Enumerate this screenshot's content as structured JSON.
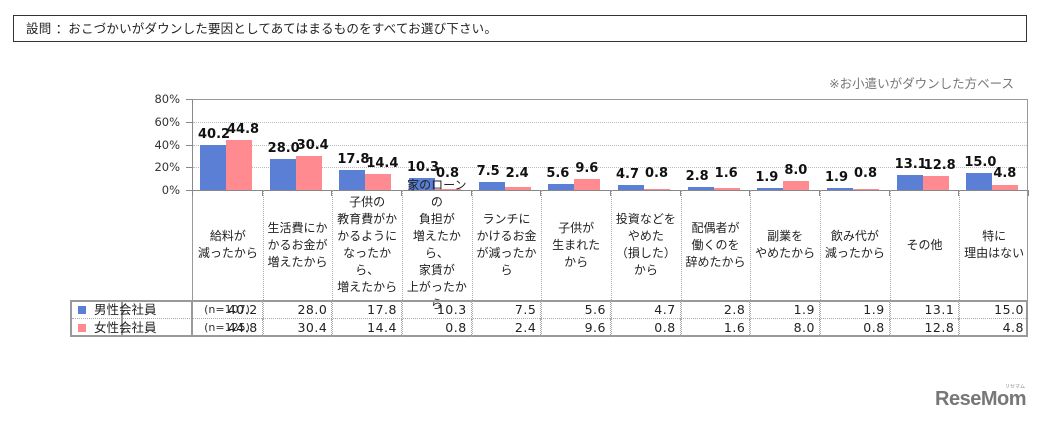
{
  "question": "設問 ：おこづかいがダウンした要因としてあてはまるものをすべてお選び下さい。",
  "note": "※お小遣いがダウンした方ベース",
  "colors": {
    "male": "#5b7fd4",
    "female": "#ff8a90"
  },
  "legend": [
    {
      "name": "男性会社員",
      "n": "(n=107)",
      "color": "#5b7fd4"
    },
    {
      "name": "女性会社員",
      "n": "(n=125)",
      "color": "#ff8a90"
    }
  ],
  "yaxis": {
    "ticks": [
      "80%",
      "60%",
      "40%",
      "20%",
      "0%"
    ]
  },
  "categories": [
    "給料が\n減ったから",
    "生活費にか\nかるお金が\n増えたから",
    "子供の\n教育費がか\nかるように\nなったから、\n増えたから",
    "家のローンの\n負担が\n増えたから、\n家賃が\n上がったから",
    "ランチに\nかけるお金\nが減ったから",
    "子供が\n生まれた\nから",
    "投資などを\nやめた\n（損した）\nから",
    "配偶者が\n働くのを\n辞めたから",
    "副業を\nやめたから",
    "飲み代が\n減ったから",
    "その他",
    "特に\n理由はない"
  ],
  "male_values": [
    "40.2",
    "28.0",
    "17.8",
    "10.3",
    "7.5",
    "5.6",
    "4.7",
    "2.8",
    "1.9",
    "1.9",
    "13.1",
    "15.0"
  ],
  "female_values": [
    "44.8",
    "30.4",
    "14.4",
    "0.8",
    "2.4",
    "9.6",
    "0.8",
    "1.6",
    "8.0",
    "0.8",
    "12.8",
    "4.8"
  ],
  "logo": {
    "text": "ReseMom",
    "sub": "リセマム"
  },
  "chart_data": {
    "type": "bar",
    "title": "設問 ：おこづかいがダウンした要因としてあてはまるものをすべてお選び下さい。",
    "subtitle": "※お小遣いがダウンした方ベース",
    "xlabel": "",
    "ylabel": "",
    "ylim": [
      0,
      80
    ],
    "yticks": [
      0,
      20,
      40,
      60,
      80
    ],
    "grid": true,
    "legend_position": "table-left",
    "categories": [
      "給料が減ったから",
      "生活費にかかるお金が増えたから",
      "子供の教育費がかかるようになったから、増えたから",
      "家のローンの負担が増えたから、家賃が上がったから",
      "ランチにかけるお金が減ったから",
      "子供が生まれたから",
      "投資などをやめた（損した）から",
      "配偶者が働くのを辞めたから",
      "副業をやめたから",
      "飲み代が減ったから",
      "その他",
      "特に理由はない"
    ],
    "series": [
      {
        "name": "男性会社員 (n=107)",
        "color": "#5b7fd4",
        "values": [
          40.2,
          28.0,
          17.8,
          10.3,
          7.5,
          5.6,
          4.7,
          2.8,
          1.9,
          1.9,
          13.1,
          15.0
        ]
      },
      {
        "name": "女性会社員 (n=125)",
        "color": "#ff8a90",
        "values": [
          44.8,
          30.4,
          14.4,
          0.8,
          2.4,
          9.6,
          0.8,
          1.6,
          8.0,
          0.8,
          12.8,
          4.8
        ]
      }
    ]
  }
}
